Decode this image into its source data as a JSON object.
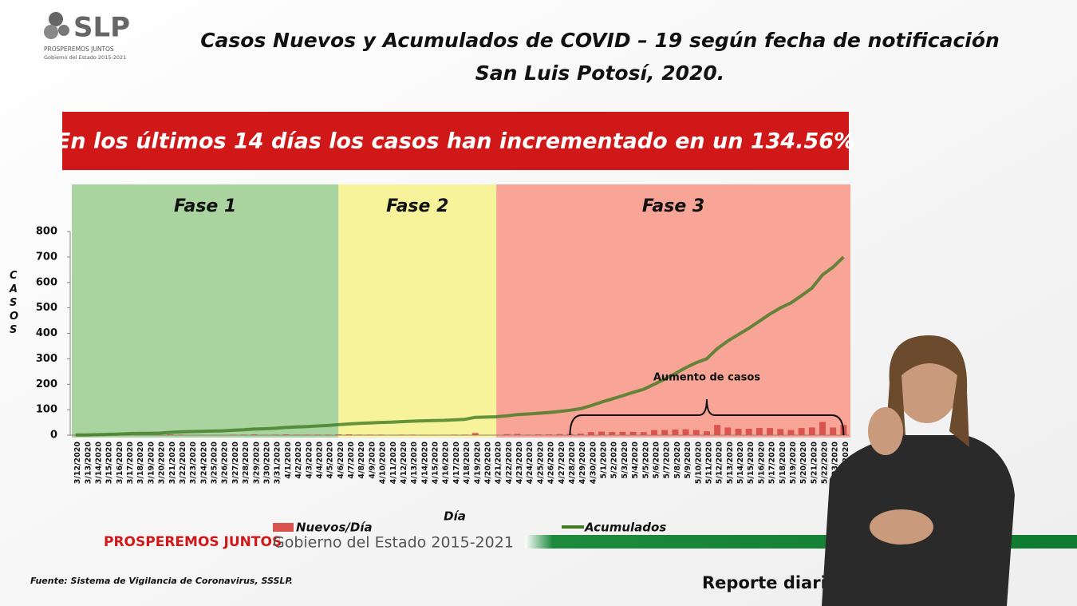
{
  "header": {
    "logo": "SLP",
    "logo_motto": "PROSPEREMOS JUNTOS",
    "logo_sub": "Gobierno del Estado 2015-2021",
    "title_line1": "Casos Nuevos y Acumulados de COVID – 19 según fecha de notificación",
    "title_line2": "San Luis Potosí, 2020.",
    "banner": "En los últimos 14 días los casos han incrementado en un 134.56%"
  },
  "chart_data": {
    "type": "combo",
    "categories": [
      "3/12/2020",
      "3/13/2020",
      "3/14/2020",
      "3/15/2020",
      "3/16/2020",
      "3/17/2020",
      "3/18/2020",
      "3/19/2020",
      "3/20/2020",
      "3/21/2020",
      "3/22/2020",
      "3/23/2020",
      "3/24/2020",
      "3/25/2020",
      "3/26/2020",
      "3/27/2020",
      "3/28/2020",
      "3/29/2020",
      "3/30/2020",
      "3/31/2020",
      "4/1/2020",
      "4/2/2020",
      "4/3/2020",
      "4/4/2020",
      "4/5/2020",
      "4/6/2020",
      "4/7/2020",
      "4/8/2020",
      "4/9/2020",
      "4/10/2020",
      "4/11/2020",
      "4/12/2020",
      "4/13/2020",
      "4/14/2020",
      "4/15/2020",
      "4/16/2020",
      "4/17/2020",
      "4/18/2020",
      "4/19/2020",
      "4/20/2020",
      "4/21/2020",
      "4/22/2020",
      "4/23/2020",
      "4/24/2020",
      "4/25/2020",
      "4/26/2020",
      "4/27/2020",
      "4/28/2020",
      "4/29/2020",
      "4/30/2020",
      "5/1/2020",
      "5/2/2020",
      "5/3/2020",
      "5/4/2020",
      "5/5/2020",
      "5/6/2020",
      "5/7/2020",
      "5/8/2020",
      "5/9/2020",
      "5/10/2020",
      "5/11/2020",
      "5/12/2020",
      "5/13/2020",
      "5/14/2020",
      "5/15/2020",
      "5/16/2020",
      "5/17/2020",
      "5/18/2020",
      "5/19/2020",
      "5/20/2020",
      "5/21/2020",
      "5/22/2020",
      "5/23/2020",
      "5/24/2020"
    ],
    "series": [
      {
        "name": "Nuevos/Día",
        "type": "bar",
        "color": "#d9534f",
        "values": [
          1,
          0,
          1,
          1,
          1,
          2,
          1,
          0,
          1,
          3,
          2,
          1,
          1,
          1,
          1,
          2,
          2,
          3,
          1,
          2,
          3,
          2,
          2,
          2,
          2,
          3,
          3,
          2,
          2,
          2,
          1,
          2,
          2,
          1,
          1,
          1,
          2,
          2,
          8,
          1,
          1,
          4,
          5,
          2,
          3,
          3,
          4,
          5,
          6,
          12,
          14,
          12,
          13,
          13,
          12,
          20,
          20,
          22,
          23,
          20,
          15,
          40,
          30,
          25,
          25,
          28,
          28,
          24,
          20,
          28,
          30,
          52,
          30,
          40
        ]
      },
      {
        "name": "Acumulados",
        "type": "line",
        "color": "#3f7a22",
        "values": [
          1,
          1,
          2,
          3,
          4,
          6,
          7,
          7,
          8,
          11,
          13,
          14,
          15,
          16,
          17,
          19,
          21,
          24,
          25,
          27,
          30,
          32,
          34,
          36,
          38,
          41,
          44,
          46,
          48,
          50,
          51,
          53,
          55,
          56,
          57,
          58,
          60,
          62,
          70,
          71,
          72,
          76,
          81,
          83,
          86,
          89,
          93,
          98,
          104,
          116,
          130,
          142,
          155,
          168,
          180,
          200,
          220,
          242,
          265,
          285,
          300,
          340,
          370,
          395,
          420,
          448,
          476,
          500,
          520,
          548,
          578,
          630,
          660,
          700
        ]
      }
    ],
    "ylim": [
      0,
      800
    ],
    "yticks": [
      0,
      100,
      200,
      300,
      400,
      500,
      600,
      700,
      800
    ],
    "y_label": "CASOS",
    "x_label": "Día",
    "phases": [
      {
        "label": "Fase 1",
        "start": "3/12/2020",
        "end": "4/6/2020",
        "color": "#a9d4a0"
      },
      {
        "label": "Fase 2",
        "start": "4/6/2020",
        "end": "4/21/2020",
        "color": "#f6f39a"
      },
      {
        "label": "Fase 3",
        "start": "4/21/2020",
        "end": "5/24/2020",
        "color": "#f8a497"
      }
    ],
    "annotation": {
      "text": "Aumento de casos",
      "start": "4/28/2020",
      "end": "5/24/2020"
    }
  },
  "footer": {
    "motto": "PROSPEREMOS JUNTOS",
    "government": "Gobierno del Estado 2015-2021",
    "source": "Fuente: Sistema de Vigilancia de Coronavirus, SSSLP.",
    "report": "Reporte diario"
  }
}
